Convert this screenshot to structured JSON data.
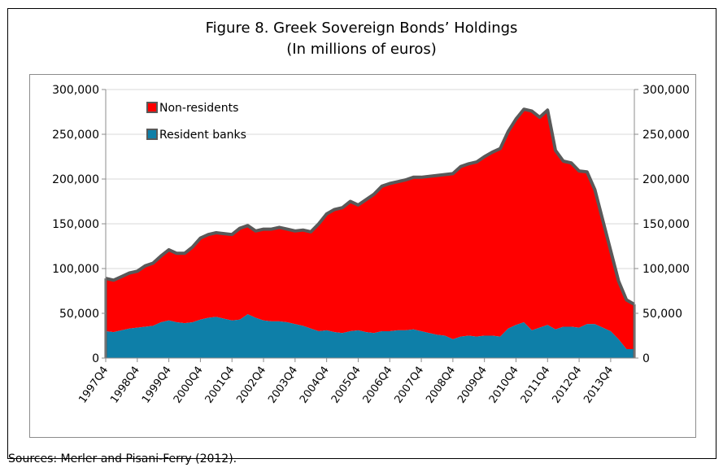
{
  "title": {
    "line1": "Figure 8. Greek Sovereign Bonds’ Holdings",
    "line2": "(In millions of euros)"
  },
  "source": "Sources: Merler and Pisani-Ferry (2012).",
  "colors": {
    "non_residents": "#ff0000",
    "resident_banks": "#0e7fa8",
    "outline": "#595959"
  },
  "chart_data": {
    "type": "area",
    "stacked": true,
    "xlabel": "",
    "ylabel": "",
    "ylim": [
      0,
      300000
    ],
    "yticks": [
      0,
      50000,
      100000,
      150000,
      200000,
      250000,
      300000
    ],
    "ytick_labels": [
      "0",
      "50,000",
      "100,000",
      "150,000",
      "200,000",
      "250,000",
      "300,000"
    ],
    "secondary_y_axis": true,
    "legend_position": "top-left",
    "x_tick_labels": [
      "1997Q4",
      "1998Q4",
      "1999Q4",
      "2000Q4",
      "2001Q4",
      "2002Q4",
      "2003Q4",
      "2004Q4",
      "2005Q4",
      "2006Q4",
      "2007Q4",
      "2008Q4",
      "2009Q4",
      "2010Q4",
      "2011Q4",
      "2012Q4",
      "2013Q4"
    ],
    "x": [
      "1997Q4",
      "1998Q1",
      "1998Q2",
      "1998Q3",
      "1998Q4",
      "1999Q1",
      "1999Q2",
      "1999Q3",
      "1999Q4",
      "2000Q1",
      "2000Q2",
      "2000Q3",
      "2000Q4",
      "2001Q1",
      "2001Q2",
      "2001Q3",
      "2001Q4",
      "2002Q1",
      "2002Q2",
      "2002Q3",
      "2002Q4",
      "2003Q1",
      "2003Q2",
      "2003Q3",
      "2003Q4",
      "2004Q1",
      "2004Q2",
      "2004Q3",
      "2004Q4",
      "2005Q1",
      "2005Q2",
      "2005Q3",
      "2005Q4",
      "2006Q1",
      "2006Q2",
      "2006Q3",
      "2006Q4",
      "2007Q1",
      "2007Q2",
      "2007Q3",
      "2007Q4",
      "2008Q1",
      "2008Q2",
      "2008Q3",
      "2008Q4",
      "2009Q1",
      "2009Q2",
      "2009Q3",
      "2009Q4",
      "2010Q1",
      "2010Q2",
      "2010Q3",
      "2010Q4",
      "2011Q1",
      "2011Q2",
      "2011Q3",
      "2011Q4",
      "2012Q1",
      "2012Q2",
      "2012Q3",
      "2012Q4",
      "2013Q1",
      "2013Q2",
      "2013Q3",
      "2013Q4",
      "2014Q1",
      "2014Q2",
      "2014Q3"
    ],
    "series": [
      {
        "name": "Resident banks",
        "color": "#0e7fa8",
        "values": [
          30000,
          29000,
          31000,
          33000,
          34000,
          35000,
          36000,
          40000,
          42000,
          40000,
          39000,
          40000,
          43000,
          45000,
          46000,
          44000,
          42000,
          43000,
          49000,
          45000,
          42000,
          41000,
          41000,
          40000,
          38000,
          36000,
          33000,
          30000,
          31000,
          29000,
          28000,
          30000,
          31000,
          29000,
          28000,
          30000,
          30000,
          31000,
          31000,
          32000,
          30000,
          28000,
          26000,
          25000,
          21000,
          24000,
          25000,
          24000,
          25000,
          25000,
          24000,
          33000,
          37000,
          40000,
          31000,
          34000,
          37000,
          32000,
          35000,
          35000,
          34000,
          38000,
          38000,
          34000,
          30000,
          21000,
          10000,
          10000
        ]
      },
      {
        "name": "Non-residents",
        "color": "#ff0000",
        "values": [
          59000,
          58000,
          60000,
          62000,
          63000,
          68000,
          70000,
          74000,
          79000,
          77000,
          78000,
          84000,
          91000,
          93000,
          94000,
          95000,
          96000,
          102000,
          99000,
          97000,
          102000,
          103000,
          105000,
          104000,
          104000,
          107000,
          108000,
          120000,
          130000,
          137000,
          140000,
          145000,
          140000,
          148000,
          155000,
          162000,
          165000,
          166000,
          168000,
          170000,
          172000,
          175000,
          178000,
          180000,
          185000,
          190000,
          192000,
          195000,
          200000,
          205000,
          210000,
          220000,
          230000,
          238000,
          245000,
          235000,
          240000,
          200000,
          185000,
          183000,
          175000,
          170000,
          150000,
          120000,
          90000,
          65000,
          55000,
          50000
        ]
      }
    ]
  }
}
